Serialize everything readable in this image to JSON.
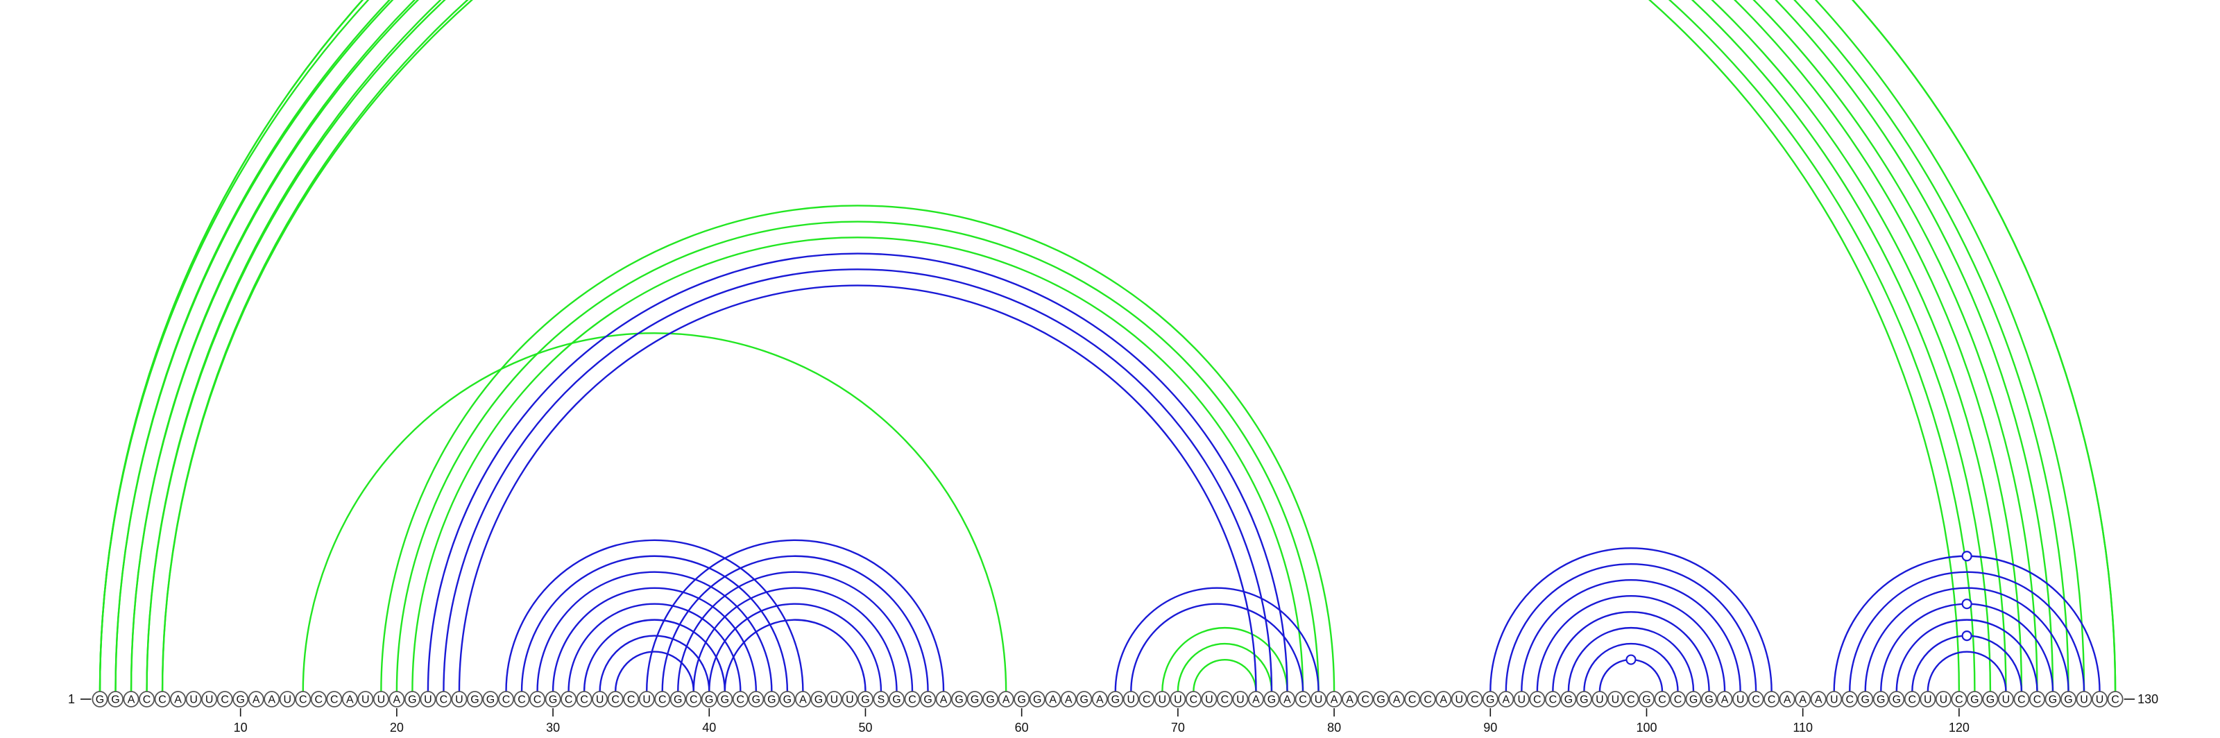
{
  "chart_data": {
    "type": "arc-diagram",
    "sequence": "GGACCAUUCGAAUCCCAUUAGUCUGGCCCGCCUCCUCGCGGCGGGAGUUGSGCGAGGGAGGAAGAGUCUUCUCUAGACUAACGACCAUCGAUCCGGUUCGCCGGAUCCAAAUCGGGCUUCGGUCCGGUUC",
    "start_label": "1",
    "end_label": "130",
    "length": 130,
    "ticks": [
      10,
      20,
      30,
      40,
      50,
      60,
      70,
      80,
      90,
      100,
      110,
      120
    ],
    "colors": {
      "green": "#22e622",
      "blue": "#1a1ad6"
    },
    "series": [
      {
        "color": "green",
        "pairs": [
          [
            1,
            130
          ],
          [
            1,
            130
          ],
          [
            1,
            128
          ],
          [
            2,
            127
          ],
          [
            2,
            126
          ],
          [
            3,
            125
          ],
          [
            3,
            124
          ],
          [
            4,
            123
          ],
          [
            4,
            122
          ],
          [
            5,
            121
          ],
          [
            5,
            120
          ],
          [
            14,
            59
          ],
          [
            19,
            80
          ],
          [
            20,
            79
          ],
          [
            21,
            78
          ],
          [
            69,
            77
          ],
          [
            70,
            76
          ],
          [
            71,
            75
          ]
        ]
      },
      {
        "color": "blue",
        "pairs": [
          [
            22,
            77
          ],
          [
            23,
            76
          ],
          [
            24,
            75
          ],
          [
            27,
            46
          ],
          [
            28,
            45
          ],
          [
            29,
            44
          ],
          [
            30,
            43
          ],
          [
            31,
            42
          ],
          [
            32,
            41
          ],
          [
            33,
            40
          ],
          [
            34,
            39
          ],
          [
            36,
            55
          ],
          [
            37,
            54
          ],
          [
            38,
            53
          ],
          [
            39,
            52
          ],
          [
            40,
            51
          ],
          [
            41,
            50
          ],
          [
            66,
            79
          ],
          [
            67,
            78
          ],
          [
            90,
            108
          ],
          [
            91,
            107
          ],
          [
            92,
            106
          ],
          [
            93,
            105
          ],
          [
            94,
            104
          ],
          [
            95,
            103
          ],
          [
            96,
            102
          ],
          [
            97,
            101
          ],
          [
            112,
            129
          ],
          [
            113,
            128
          ],
          [
            114,
            127
          ],
          [
            115,
            126
          ],
          [
            116,
            125
          ],
          [
            117,
            124
          ],
          [
            118,
            123
          ]
        ]
      }
    ],
    "markers": [
      {
        "position": 65.5,
        "color": "green",
        "pair": [
          1,
          130
        ]
      },
      {
        "position": 99,
        "color": "blue",
        "pair": [
          97,
          101
        ]
      },
      {
        "position": 120.5,
        "color": "blue",
        "pair": [
          112,
          129
        ]
      },
      {
        "position": 120.5,
        "color": "blue",
        "pair": [
          115,
          126
        ]
      },
      {
        "position": 120.5,
        "color": "blue",
        "pair": [
          117,
          124
        ]
      }
    ]
  }
}
